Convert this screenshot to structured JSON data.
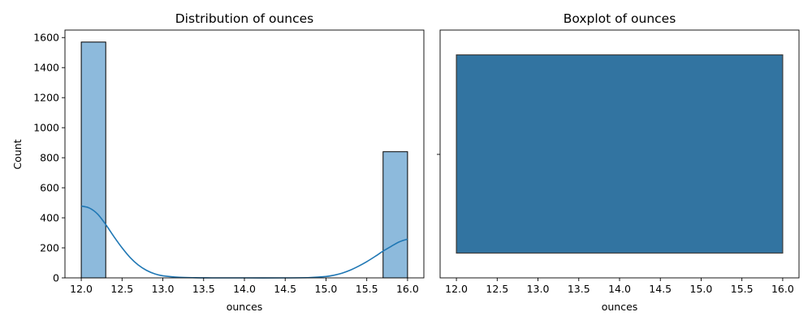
{
  "chart_data": [
    {
      "type": "histogram",
      "title": "Distribution of ounces",
      "xlabel": "ounces",
      "ylabel": "Count",
      "xlim": [
        11.8,
        16.2
      ],
      "ylim": [
        0,
        1650
      ],
      "xticks": [
        12.0,
        12.5,
        13.0,
        13.5,
        14.0,
        14.5,
        15.0,
        15.5,
        16.0
      ],
      "xtick_labels": [
        "12.0",
        "12.5",
        "13.0",
        "13.5",
        "14.0",
        "14.5",
        "15.0",
        "15.5",
        "16.0"
      ],
      "yticks": [
        0,
        200,
        400,
        600,
        800,
        1000,
        1200,
        1400,
        1600
      ],
      "ytick_labels": [
        "0",
        "200",
        "400",
        "600",
        "800",
        "1000",
        "1200",
        "1400",
        "1600"
      ],
      "bins": [
        {
          "x0": 12.0,
          "x1": 12.3,
          "count": 1570
        },
        {
          "x0": 15.7,
          "x1": 16.0,
          "count": 840
        }
      ],
      "bar_color": "#8dbadc",
      "kde": {
        "color": "#1f77b4",
        "points": [
          [
            12.0,
            478
          ],
          [
            12.1,
            465
          ],
          [
            12.2,
            425
          ],
          [
            12.3,
            355
          ],
          [
            12.4,
            275
          ],
          [
            12.5,
            200
          ],
          [
            12.6,
            135
          ],
          [
            12.7,
            85
          ],
          [
            12.8,
            50
          ],
          [
            12.9,
            27
          ],
          [
            13.0,
            14
          ],
          [
            13.2,
            4
          ],
          [
            13.4,
            1
          ],
          [
            13.6,
            0
          ],
          [
            14.0,
            0
          ],
          [
            14.5,
            0
          ],
          [
            14.8,
            2
          ],
          [
            15.0,
            9
          ],
          [
            15.1,
            18
          ],
          [
            15.2,
            32
          ],
          [
            15.3,
            52
          ],
          [
            15.4,
            78
          ],
          [
            15.5,
            108
          ],
          [
            15.6,
            142
          ],
          [
            15.7,
            178
          ],
          [
            15.8,
            210
          ],
          [
            15.9,
            240
          ],
          [
            16.0,
            258
          ]
        ]
      },
      "grid": false
    },
    {
      "type": "boxplot",
      "title": "Boxplot of ounces",
      "xlabel": "ounces",
      "xlim": [
        11.8,
        16.2
      ],
      "xticks": [
        12.0,
        12.5,
        13.0,
        13.5,
        14.0,
        14.5,
        15.0,
        15.5,
        16.0
      ],
      "xtick_labels": [
        "12.0",
        "12.5",
        "13.0",
        "13.5",
        "14.0",
        "14.5",
        "15.0",
        "15.5",
        "16.0"
      ],
      "box": {
        "whisker_low": 12.0,
        "q1": 12.0,
        "median": 12.0,
        "q3": 16.0,
        "whisker_high": 16.0
      },
      "box_color": "#3274a1",
      "grid": false
    }
  ]
}
